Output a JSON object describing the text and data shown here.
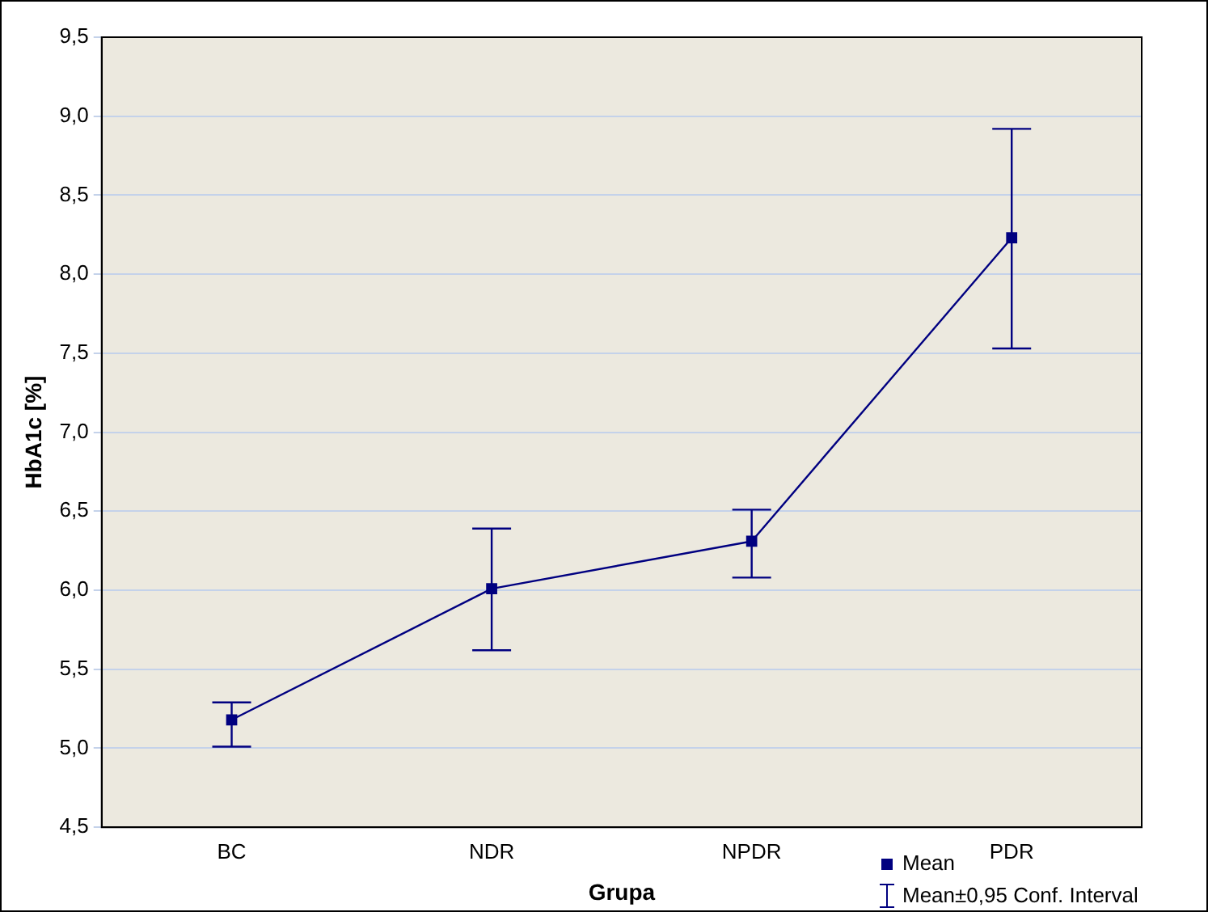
{
  "chart_data": {
    "type": "line",
    "xlabel": "Grupa",
    "ylabel": "HbA1c [%]",
    "categories": [
      "BC",
      "NDR",
      "NPDR",
      "PDR"
    ],
    "series": [
      {
        "name": "Mean",
        "color": "#000080",
        "values": [
          5.18,
          6.01,
          6.31,
          8.23
        ],
        "errors": [
          [
            5.01,
            5.29
          ],
          [
            5.62,
            6.39
          ],
          [
            6.08,
            6.51
          ],
          [
            7.53,
            8.92
          ]
        ]
      }
    ],
    "ylim": [
      4.5,
      9.5
    ],
    "yticks": [
      {
        "value": 4.5,
        "label": "4,5"
      },
      {
        "value": 5,
        "label": "5,0"
      },
      {
        "value": 5.5,
        "label": "5,5"
      },
      {
        "value": 6,
        "label": "6,0"
      },
      {
        "value": 6.5,
        "label": "6,5"
      },
      {
        "value": 7,
        "label": "7,0"
      },
      {
        "value": 7.5,
        "label": "7,5"
      },
      {
        "value": 8,
        "label": "8,0"
      },
      {
        "value": 8.5,
        "label": "8,5"
      },
      {
        "value": 9,
        "label": "9,0"
      },
      {
        "value": 9.5,
        "label": "9,5"
      }
    ],
    "annotations": [
      "Mean±0,95 Conf. Interval"
    ],
    "grid": "y",
    "legend": "bottom right",
    "marker": "square",
    "line_style": "solid"
  }
}
